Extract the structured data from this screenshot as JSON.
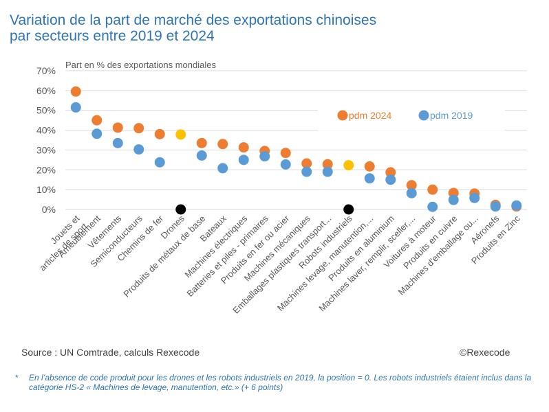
{
  "title_line1": "Variation de la part de marché des exportations chinoises",
  "title_line2": "par secteurs entre 2019 et 2024",
  "source": "Source : UN Comtrade, calculs Rexecode",
  "copyright": "©Rexecode",
  "footnote_marker": "*",
  "footnote": "En l’absence de code produit pour les drones et les robots industriels en 2019, la position = 0. Les robots industriels étaient inclus dans la catégorie HS-2 « Machines de levage, manutention, etc.» (+ 6 points)",
  "chart_data": {
    "type": "scatter",
    "ylabel": "Part en % des exportations mondiales",
    "ylim": [
      0,
      70
    ],
    "yticks": [
      "0%",
      "10%",
      "20%",
      "30%",
      "40%",
      "50%",
      "60%",
      "70%"
    ],
    "grid": true,
    "legend_position": "top-right",
    "categories": [
      [
        "Jouets et",
        "articles de sport"
      ],
      [
        "Ameublement"
      ],
      [
        "Vêtements"
      ],
      [
        "Semiconducteurs"
      ],
      [
        "Chemins de fer"
      ],
      [
        "Drones"
      ],
      [
        "Produits de métaux de base"
      ],
      [
        "Bateaux"
      ],
      [
        "Machines électriques"
      ],
      [
        "Batteries et piles - primaires"
      ],
      [
        "Produits en fer ou acier"
      ],
      [
        "Machines mécaniques"
      ],
      [
        "Emballages plastiques transport..."
      ],
      [
        "Robots industriels"
      ],
      [
        "Machines levage, manutention,..."
      ],
      [
        "Produits en aluminium"
      ],
      [
        "Machines laver, remplir, sceller,..."
      ],
      [
        "Voitures à moteur"
      ],
      [
        "Produits en cuivre"
      ],
      [
        "Machines d'emballage ou..."
      ],
      [
        "Aéronefs"
      ],
      [
        "Produits en Zinc"
      ]
    ],
    "series": [
      {
        "name": "pdm 2024",
        "color": "#ED7D31",
        "values": [
          59.5,
          45,
          41.3,
          41,
          38,
          37.8,
          33.5,
          33,
          31.3,
          29.5,
          28.5,
          23.2,
          22.8,
          22.3,
          21.7,
          18.7,
          12.2,
          10,
          8.3,
          8,
          2.3,
          1.5
        ],
        "highlight": {
          "5": "#FFC000",
          "13": "#FFC000"
        }
      },
      {
        "name": "pdm 2019",
        "color": "#5B9BD5",
        "values": [
          51.5,
          38.2,
          33.5,
          30.3,
          23.8,
          0,
          27.2,
          20.8,
          25,
          26.8,
          22.7,
          19,
          19,
          0,
          15.7,
          15,
          8.2,
          1.3,
          4.8,
          5.8,
          1.5,
          2
        ],
        "highlight": {
          "5": "#000000",
          "13": "#000000"
        }
      }
    ]
  }
}
